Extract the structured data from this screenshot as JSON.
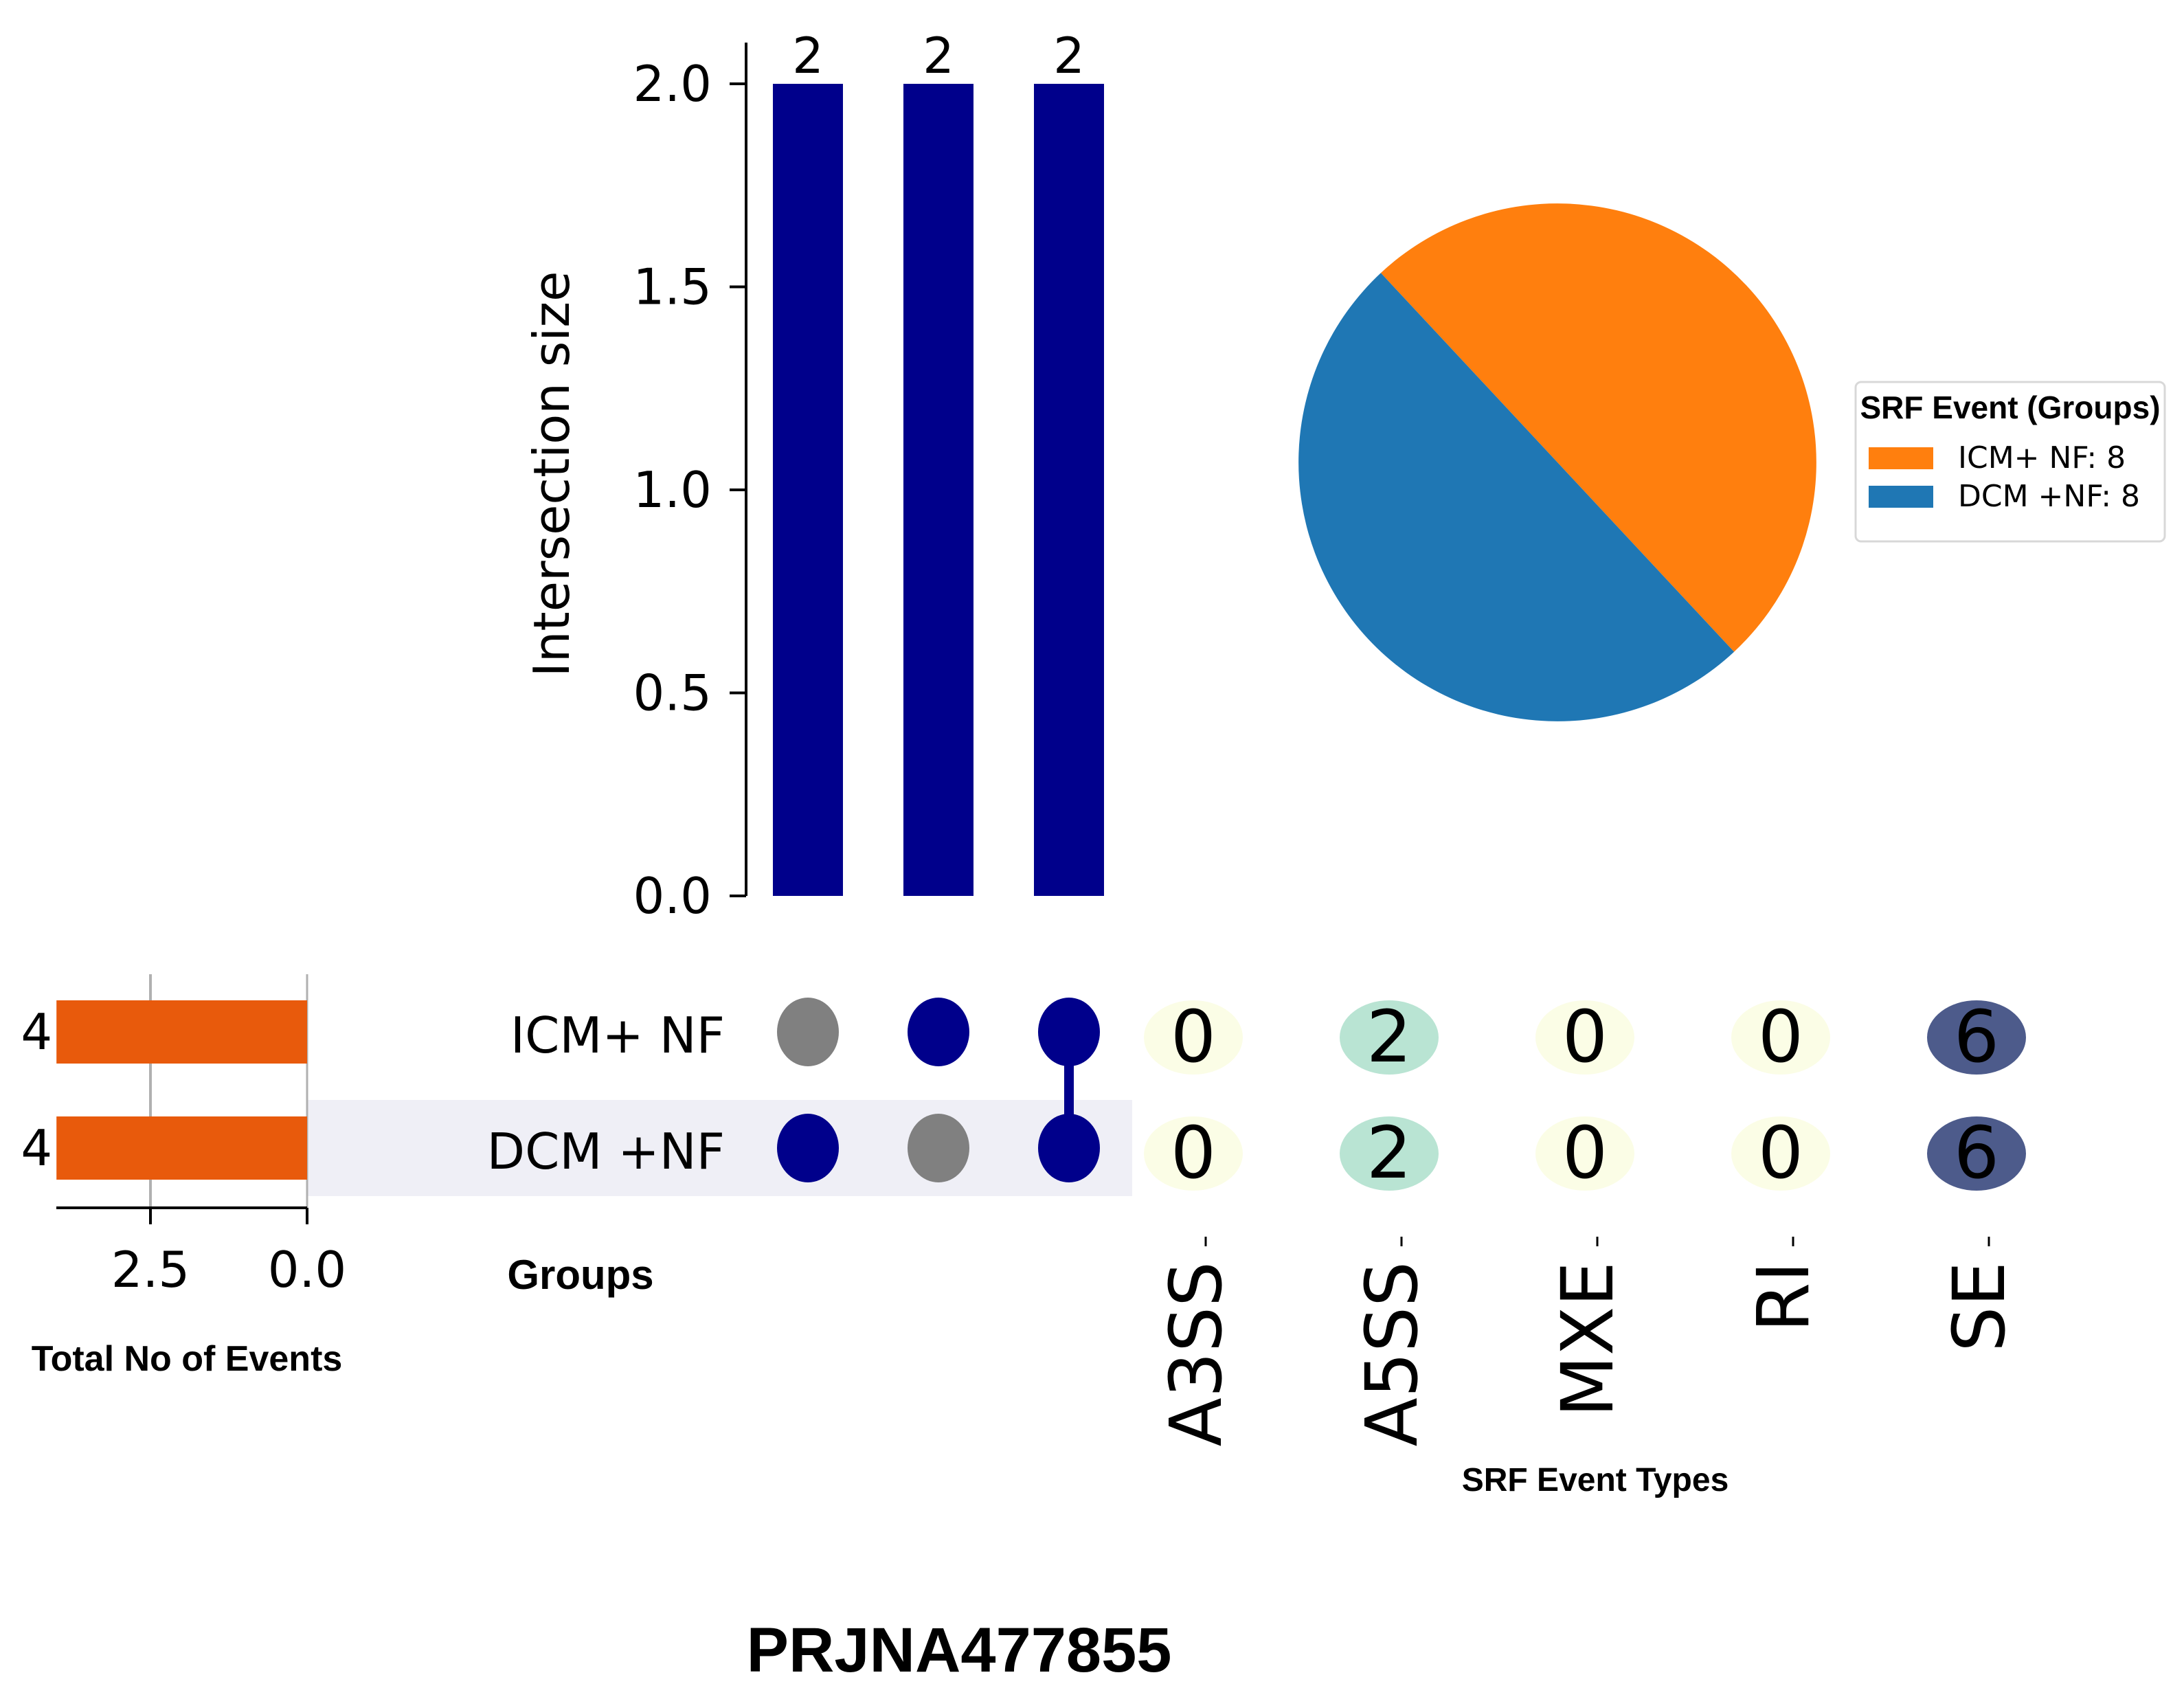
{
  "title": "PRJNA477855",
  "colors": {
    "bar": "#00008b",
    "dot_active": "#00008b",
    "dot_inactive": "#808080",
    "total_bar": "#e85a0c",
    "row_shade": "#efeff6",
    "icm": "#ff7f0e",
    "dcm": "#1f77b4"
  },
  "chart_data": [
    {
      "type": "bar",
      "name": "intersection-bars",
      "ylabel": "Intersection size",
      "ylim": [
        0,
        2.0
      ],
      "yticks": [
        "0.0",
        "0.5",
        "1.0",
        "1.5",
        "2.0"
      ],
      "ytick_values": [
        0,
        0.5,
        1.0,
        1.5,
        2.0
      ],
      "values": [
        2,
        2,
        2
      ],
      "value_labels": [
        "2",
        "2",
        "2"
      ]
    },
    {
      "type": "table",
      "name": "membership-matrix",
      "xlabel": "Groups",
      "rows": [
        "ICM+ NF",
        "DCM +NF"
      ],
      "membership": [
        [
          false,
          true
        ],
        [
          true,
          false
        ],
        [
          true,
          true
        ]
      ]
    },
    {
      "type": "bar",
      "name": "total-events",
      "orientation": "horizontal-reversed",
      "xlabel": "Total No of Events",
      "categories": [
        "ICM+ NF",
        "DCM +NF"
      ],
      "values": [
        4,
        4
      ],
      "value_labels": [
        "4",
        "4"
      ],
      "xticks": [
        "2.5",
        "0.0"
      ],
      "xtick_values": [
        2.5,
        0.0
      ],
      "xlim": [
        4.1,
        0
      ]
    },
    {
      "type": "heatmap",
      "name": "event-type-counts",
      "xlabel": "SRF Event Types",
      "categories": [
        "A3SS",
        "A5SS",
        "MXE",
        "RI",
        "SE"
      ],
      "rows": [
        "ICM+ NF",
        "DCM +NF"
      ],
      "values": [
        [
          0,
          2,
          0,
          0,
          6
        ],
        [
          0,
          2,
          0,
          0,
          6
        ]
      ],
      "cell_colors": {
        "0": "#fbfde6",
        "2": "#b9e4d3",
        "6": "#4d5b8b"
      }
    },
    {
      "type": "pie",
      "name": "group-pie",
      "legend_title": "SRF Event (Groups)",
      "legend_position": "right",
      "labels": [
        "ICM+ NF: 8",
        "DCM +NF: 8"
      ],
      "values": [
        8,
        8
      ],
      "colors": [
        "#ff7f0e",
        "#1f77b4"
      ]
    }
  ]
}
